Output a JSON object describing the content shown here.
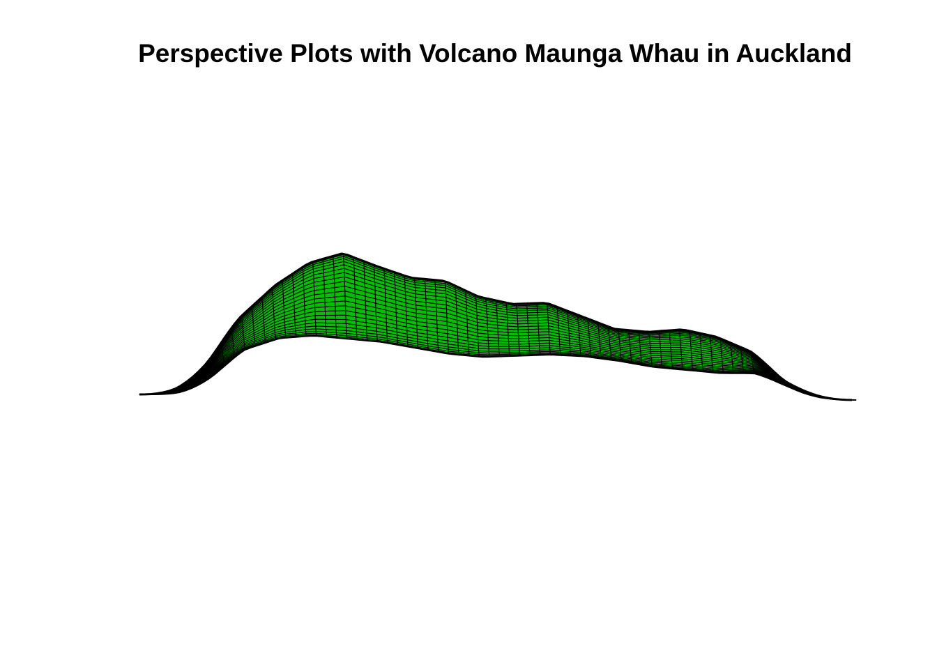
{
  "chart_data": {
    "type": "surface",
    "title": "Perspective Plots with Volcano Maunga Whau in Auckland",
    "xlabel": "",
    "ylabel": "",
    "zlabel": "",
    "axes_shown": false,
    "grid": false,
    "legend": "none",
    "surface_color": "#00c000",
    "mesh_color": "#000000",
    "grid_resolution": {
      "rows": 87,
      "cols": 61
    },
    "z_range": [
      94,
      195
    ],
    "ridge_profile_z": [
      100,
      108,
      125,
      150,
      172,
      188,
      195,
      186,
      178,
      176,
      165,
      160,
      161,
      152,
      143,
      141,
      143,
      138,
      128,
      112,
      105,
      100
    ]
  }
}
